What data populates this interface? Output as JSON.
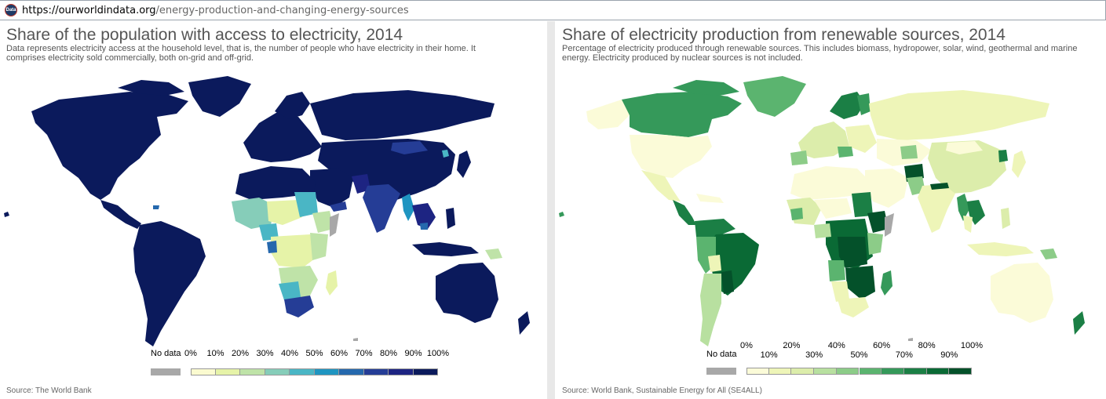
{
  "browser": {
    "favicon_text": "Data",
    "url_domain": "https://ourworldindata.org",
    "url_path": "/energy-production-and-changing-energy-sources"
  },
  "left": {
    "title": "Share of the population with access to electricity, 2014",
    "subtitle": "Data represents electricity access at the household level, that is, the number of people who have electricity in their home. It comprises electricity sold commercially, both on-grid and off-grid.",
    "legend": {
      "no_data": "No data",
      "ticks": [
        "0%",
        "10%",
        "20%",
        "30%",
        "40%",
        "50%",
        "60%",
        "70%",
        "80%",
        "90%",
        "100%"
      ],
      "colors": [
        "#fbfbd0",
        "#e6f3a8",
        "#bfe3a8",
        "#86cdb9",
        "#4ab6c5",
        "#1f95c1",
        "#2568ad",
        "#253d96",
        "#1d2482",
        "#0b1a5c"
      ]
    },
    "source": "Source: The World Bank",
    "colors": {
      "ocean": "#ffffff",
      "border": "#ffffff",
      "no_data": "#a8a8a8"
    }
  },
  "right": {
    "title": "Share of electricity production from renewable sources, 2014",
    "subtitle": "Percentage of electricity produced through renewable sources. This includes biomass, hydropower, solar, wind, geothermal and marine energy. Electricity produced by nuclear sources is not included.",
    "legend": {
      "no_data": "No data",
      "ticks_top": [
        "0%",
        "20%",
        "40%",
        "60%",
        "80%",
        "100%"
      ],
      "ticks_bottom": [
        "10%",
        "30%",
        "50%",
        "70%",
        "90%"
      ],
      "colors": [
        "#fbfbd8",
        "#eef5b8",
        "#dcedab",
        "#b8e0a0",
        "#8ccc88",
        "#5bb46f",
        "#35995a",
        "#1b7f45",
        "#0a6a35",
        "#04512a"
      ]
    },
    "source": "Source: World Bank, Sustainable Energy for All (SE4ALL)"
  }
}
